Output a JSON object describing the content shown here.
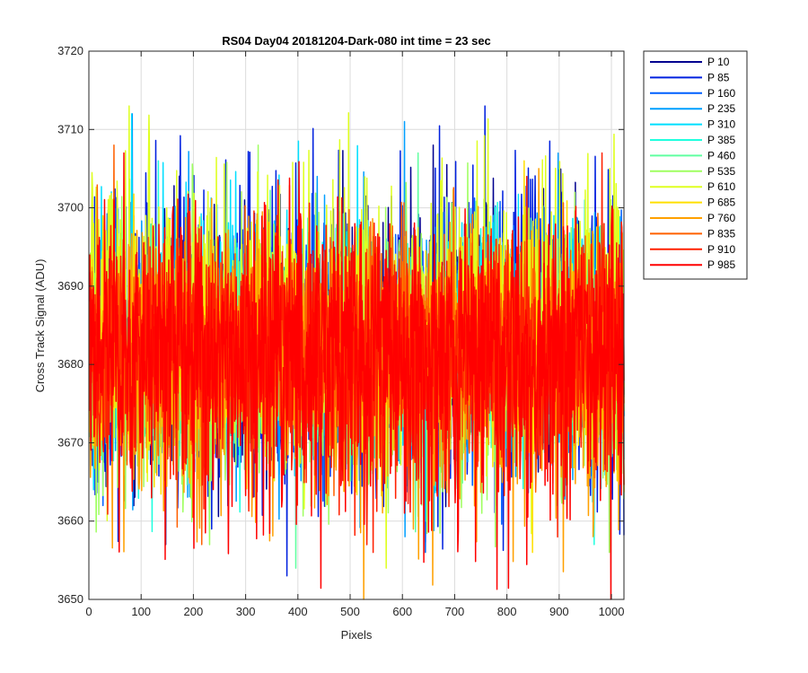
{
  "chart_data": {
    "type": "line",
    "title": "RS04 Day04 20181204-Dark-080 int time = 23 sec",
    "xlabel": "Pixels",
    "ylabel": "Cross Track Signal (ADU)",
    "xlim": [
      0,
      1024
    ],
    "ylim": [
      3650,
      3720
    ],
    "xticks": [
      0,
      100,
      200,
      300,
      400,
      500,
      600,
      700,
      800,
      900,
      1000
    ],
    "yticks": [
      3650,
      3660,
      3670,
      3680,
      3690,
      3700,
      3710,
      3720
    ],
    "grid": true,
    "legend_position": "outside-top-right",
    "n_points": 1024,
    "series": [
      {
        "name": "P 10",
        "color": "#00008f",
        "mean": 3682,
        "min": 3657,
        "max": 3708
      },
      {
        "name": "P 85",
        "color": "#0020df",
        "mean": 3682,
        "min": 3653,
        "max": 3713
      },
      {
        "name": "P 160",
        "color": "#0060ff",
        "mean": 3682,
        "min": 3656,
        "max": 3712
      },
      {
        "name": "P 235",
        "color": "#009fff",
        "mean": 3682,
        "min": 3658,
        "max": 3711
      },
      {
        "name": "P 310",
        "color": "#00dfff",
        "mean": 3682,
        "min": 3660,
        "max": 3712
      },
      {
        "name": "P 385",
        "color": "#20ffdf",
        "mean": 3682,
        "min": 3657,
        "max": 3706
      },
      {
        "name": "P 460",
        "color": "#60ffa0",
        "mean": 3682,
        "min": 3654,
        "max": 3707
      },
      {
        "name": "P 535",
        "color": "#9fff60",
        "mean": 3682,
        "min": 3656,
        "max": 3708
      },
      {
        "name": "P 610",
        "color": "#dfff20",
        "mean": 3682,
        "min": 3654,
        "max": 3713
      },
      {
        "name": "P 685",
        "color": "#ffdf00",
        "mean": 3682,
        "min": 3656,
        "max": 3706
      },
      {
        "name": "P 760",
        "color": "#ffa000",
        "mean": 3682,
        "min": 3650,
        "max": 3705
      },
      {
        "name": "P 835",
        "color": "#ff6000",
        "mean": 3682,
        "min": 3657,
        "max": 3708
      },
      {
        "name": "P 910",
        "color": "#ff2000",
        "mean": 3682,
        "min": 3656,
        "max": 3707
      },
      {
        "name": "P 985",
        "color": "#ff0000",
        "mean": 3682,
        "min": 3650,
        "max": 3707
      }
    ]
  }
}
